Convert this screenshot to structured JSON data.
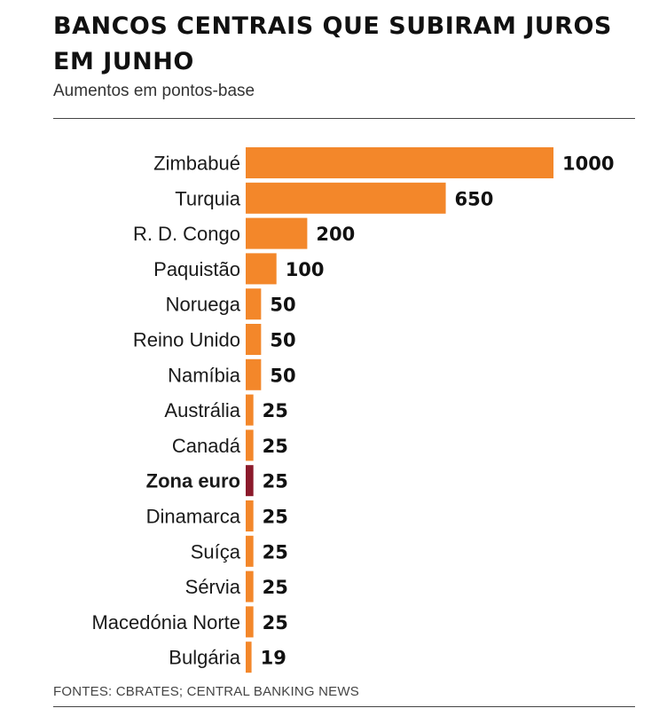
{
  "header": {
    "title": "BANCOS CENTRAIS QUE SUBIRAM JUROS EM JUNHO",
    "subtitle": "Aumentos em pontos-base"
  },
  "footer": {
    "source": "FONTES: CBRATES; CENTRAL BANKING NEWS"
  },
  "colors": {
    "bar": "#f3872a",
    "highlight_bar": "#8b1a2b",
    "text": "#1a1a1a"
  },
  "chart_data": {
    "type": "bar",
    "orientation": "horizontal",
    "title": "BANCOS CENTRAIS QUE SUBIRAM JUROS EM JUNHO",
    "subtitle": "Aumentos em pontos-base",
    "categories": [
      "Zimbabué",
      "Turquia",
      "R. D. Congo",
      "Paquistão",
      "Noruega",
      "Reino Unido",
      "Namíbia",
      "Austrália",
      "Canadá",
      "Zona euro",
      "Dinamarca",
      "Suíça",
      "Sérvia",
      "Macedónia Norte",
      "Bulgária"
    ],
    "values": [
      1000,
      650,
      200,
      100,
      50,
      50,
      50,
      25,
      25,
      25,
      25,
      25,
      25,
      25,
      19
    ],
    "highlight": [
      "Zona euro"
    ],
    "xlim": [
      0,
      1000
    ],
    "grid": false,
    "legend": "none"
  }
}
